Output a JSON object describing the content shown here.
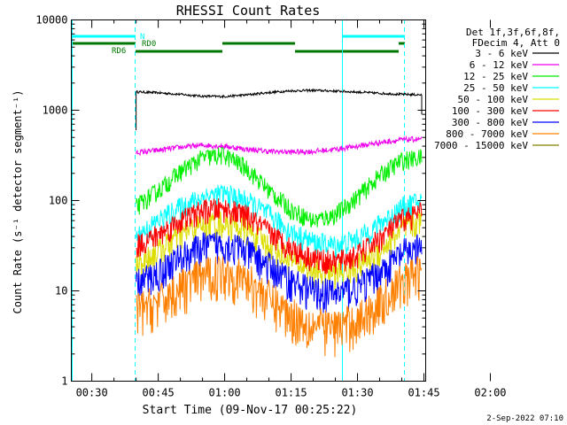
{
  "chart_data": {
    "type": "line",
    "title": "RHESSI Count Rates",
    "xlabel": "Start Time (09-Nov-17 00:25:22)",
    "ylabel": "Count Rate (s⁻¹ detector segment⁻¹)",
    "yscale": "log",
    "xlim_min": [
      25.37,
      105.4
    ],
    "ylim": [
      1,
      10000
    ],
    "x_ticks": [
      "00:30",
      "00:45",
      "01:00",
      "01:15",
      "01:30",
      "01:45",
      "02:00"
    ],
    "x_tick_values_min": [
      30,
      45,
      60,
      75,
      90,
      105,
      120
    ],
    "y_ticks": [
      "1",
      "10",
      "100",
      "1000",
      "10000"
    ],
    "legend_header": [
      "Det 1f,3f,6f,8f,",
      "FDecim 4, Att 0"
    ],
    "legend_position": "right",
    "series": [
      {
        "name": "3 - 6 keV",
        "color": "#000000",
        "x": [
          40,
          45,
          50,
          55,
          60,
          65,
          70,
          75,
          80,
          85,
          90,
          95,
          100,
          104.5
        ],
        "y": [
          1600,
          1560,
          1500,
          1430,
          1420,
          1480,
          1570,
          1640,
          1660,
          1630,
          1590,
          1540,
          1500,
          1480
        ]
      },
      {
        "name": "6 - 12 keV",
        "color": "#ee00ee",
        "x": [
          40,
          45,
          50,
          55,
          60,
          65,
          70,
          75,
          80,
          85,
          90,
          95,
          100,
          104.5
        ],
        "y": [
          340,
          360,
          390,
          410,
          400,
          370,
          350,
          345,
          350,
          370,
          400,
          440,
          470,
          480
        ]
      },
      {
        "name": "12 - 25 keV",
        "color": "#00ee00",
        "x": [
          40,
          45,
          50,
          55,
          60,
          65,
          70,
          75,
          80,
          85,
          90,
          95,
          100,
          104.5
        ],
        "y": [
          85,
          130,
          210,
          300,
          320,
          230,
          130,
          80,
          60,
          70,
          110,
          190,
          280,
          300
        ]
      },
      {
        "name": "25 - 50 keV",
        "color": "#00ffff",
        "x": [
          40,
          45,
          50,
          55,
          60,
          65,
          70,
          75,
          80,
          85,
          90,
          95,
          100,
          104.5
        ],
        "y": [
          40,
          60,
          85,
          110,
          120,
          100,
          70,
          45,
          35,
          32,
          38,
          55,
          85,
          100
        ]
      },
      {
        "name": "50 - 100 keV",
        "color": "#dddd00",
        "x": [
          40,
          45,
          50,
          55,
          60,
          65,
          70,
          75,
          80,
          85,
          90,
          95,
          100,
          104.5
        ],
        "y": [
          20,
          28,
          42,
          55,
          58,
          48,
          32,
          22,
          17,
          16,
          19,
          28,
          48,
          62
        ]
      },
      {
        "name": "100 - 300 keV",
        "color": "#ff0000",
        "x": [
          40,
          45,
          50,
          55,
          60,
          65,
          70,
          75,
          80,
          85,
          90,
          95,
          100,
          104.5
        ],
        "y": [
          32,
          42,
          60,
          78,
          82,
          68,
          45,
          30,
          23,
          21,
          25,
          38,
          62,
          75
        ]
      },
      {
        "name": "300 - 800 keV",
        "color": "#0000ff",
        "x": [
          40,
          45,
          50,
          55,
          60,
          65,
          70,
          75,
          80,
          85,
          90,
          95,
          100,
          104.5
        ],
        "y": [
          12,
          16,
          24,
          31,
          34,
          28,
          19,
          13,
          10,
          9.5,
          11,
          16,
          26,
          31
        ]
      },
      {
        "name": "800 - 7000 keV",
        "color": "#ff8000",
        "x": [
          40,
          45,
          50,
          55,
          60,
          65,
          70,
          75,
          80,
          85,
          90,
          95,
          100,
          104.5
        ],
        "y": [
          6.2,
          7.5,
          11,
          15,
          17,
          13.5,
          8.5,
          5.5,
          4.3,
          4.0,
          4.8,
          7.5,
          13,
          17
        ]
      },
      {
        "name": "7000 - 15000 keV",
        "color": "#808000",
        "x": [],
        "y": []
      }
    ],
    "annotations": [
      {
        "text": "N",
        "color": "#00ffff"
      },
      {
        "text": "RD0",
        "color": "#007700"
      },
      {
        "text": "RD6",
        "color": "#007700"
      }
    ],
    "footer": "2-Sep-2022 07:10"
  }
}
